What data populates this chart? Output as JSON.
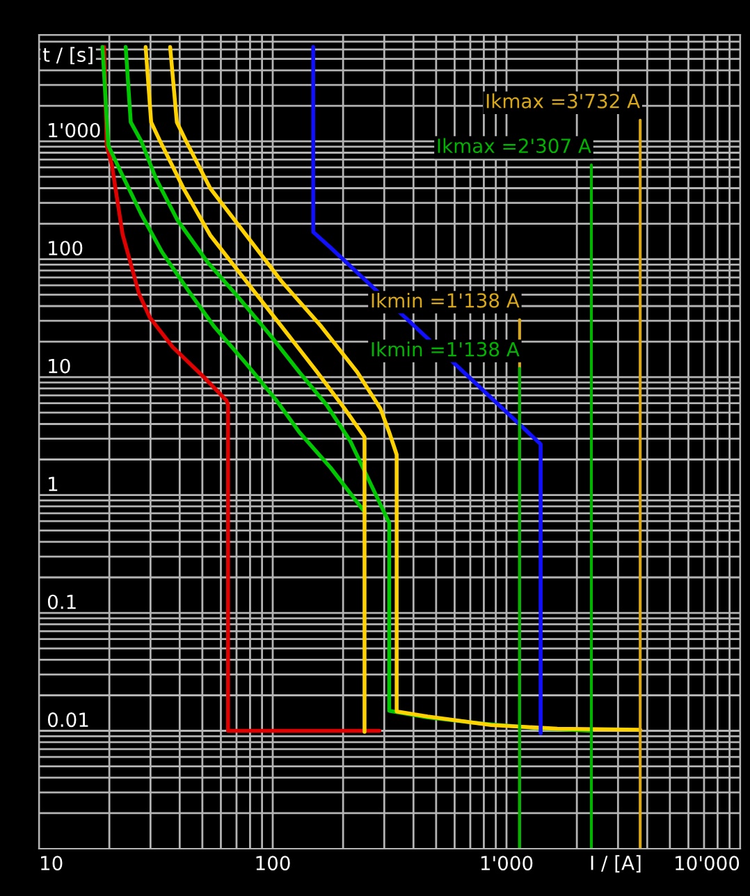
{
  "chart_data": {
    "type": "line",
    "xlabel": "I / [A]",
    "ylabel": "t / [s]",
    "log": "xy",
    "grid": true,
    "legend": false,
    "marker": "none",
    "line_style": "solid",
    "xlim": [
      10,
      10000
    ],
    "ylim": [
      0.001,
      8000
    ],
    "xticks": [
      10,
      100,
      {
        "value": 1000,
        "label": "1'000"
      },
      {
        "value": 10000,
        "label": "10'000"
      }
    ],
    "yticks": [
      0.01,
      0.1,
      1,
      10,
      100,
      {
        "value": 1000,
        "label": "1'000"
      }
    ],
    "series": [
      {
        "color": "#e00000",
        "x": [
          19,
          19.5,
          20.5,
          22.8,
          26.8,
          29.8,
          37.3,
          50.7,
          63.5,
          64.4,
          64.4,
          286
        ],
        "values": [
          6300,
          920,
          630,
          162,
          51,
          32,
          18,
          10,
          6.3,
          5.8,
          0.01,
          0.01
        ]
      },
      {
        "color": "#00c800",
        "x": [
          18.7,
          19.8,
          22.1,
          27.4,
          33.6,
          43.3,
          56,
          77,
          104,
          130,
          177,
          247
        ],
        "values": [
          6300,
          920,
          580,
          240,
          115,
          55,
          27,
          13,
          6.3,
          3.4,
          1.7,
          0.72
        ]
      },
      {
        "color": "#00c800",
        "x": [
          23.5,
          24.7,
          27.4,
          31.7,
          39.1,
          52.5,
          71,
          97,
          130,
          170,
          214,
          315,
          315,
          460,
          790,
          1390,
          2307
        ],
        "values": [
          6300,
          1450,
          1000,
          480,
          215,
          95,
          48,
          23,
          11,
          5.8,
          2.9,
          0.58,
          0.0148,
          0.013,
          0.0115,
          0.0105,
          0.01
        ]
      },
      {
        "color": "#ffd200",
        "x": [
          28.6,
          30.2,
          33.0,
          41.5,
          54,
          77,
          109,
          155,
          203,
          247,
          247
        ],
        "values": [
          6300,
          1450,
          1000,
          400,
          160,
          65,
          27,
          11,
          5.4,
          3.1,
          0.0098
        ]
      },
      {
        "color": "#ffd200",
        "x": [
          36.4,
          38.9,
          42.6,
          54,
          77,
          109,
          161,
          230,
          289,
          315,
          339,
          339,
          460,
          860,
          1650,
          3732
        ],
        "values": [
          6300,
          1450,
          1000,
          400,
          160,
          65,
          27,
          11,
          5.4,
          3.4,
          2.2,
          0.0146,
          0.0132,
          0.0112,
          0.0104,
          0.0102
        ]
      },
      {
        "color": "#1010ff",
        "x": [
          149,
          149,
          177,
          1400,
          1400
        ],
        "values": [
          6300,
          170,
          125,
          2.7,
          0.0095
        ]
      }
    ],
    "ref_lines": [
      {
        "axis": "x",
        "value": 1138,
        "label": "Ikmin =1'138 A",
        "color": "#d8a818"
      },
      {
        "axis": "x",
        "value": 1138,
        "label": "Ikmin =1'138 A",
        "color": "#00b400"
      },
      {
        "axis": "x",
        "value": 2307,
        "label": "Ikmax =2'307 A",
        "color": "#00b400"
      },
      {
        "axis": "x",
        "value": 3732,
        "label": "Ikmax =3'732 A",
        "color": "#d8a818"
      }
    ]
  }
}
